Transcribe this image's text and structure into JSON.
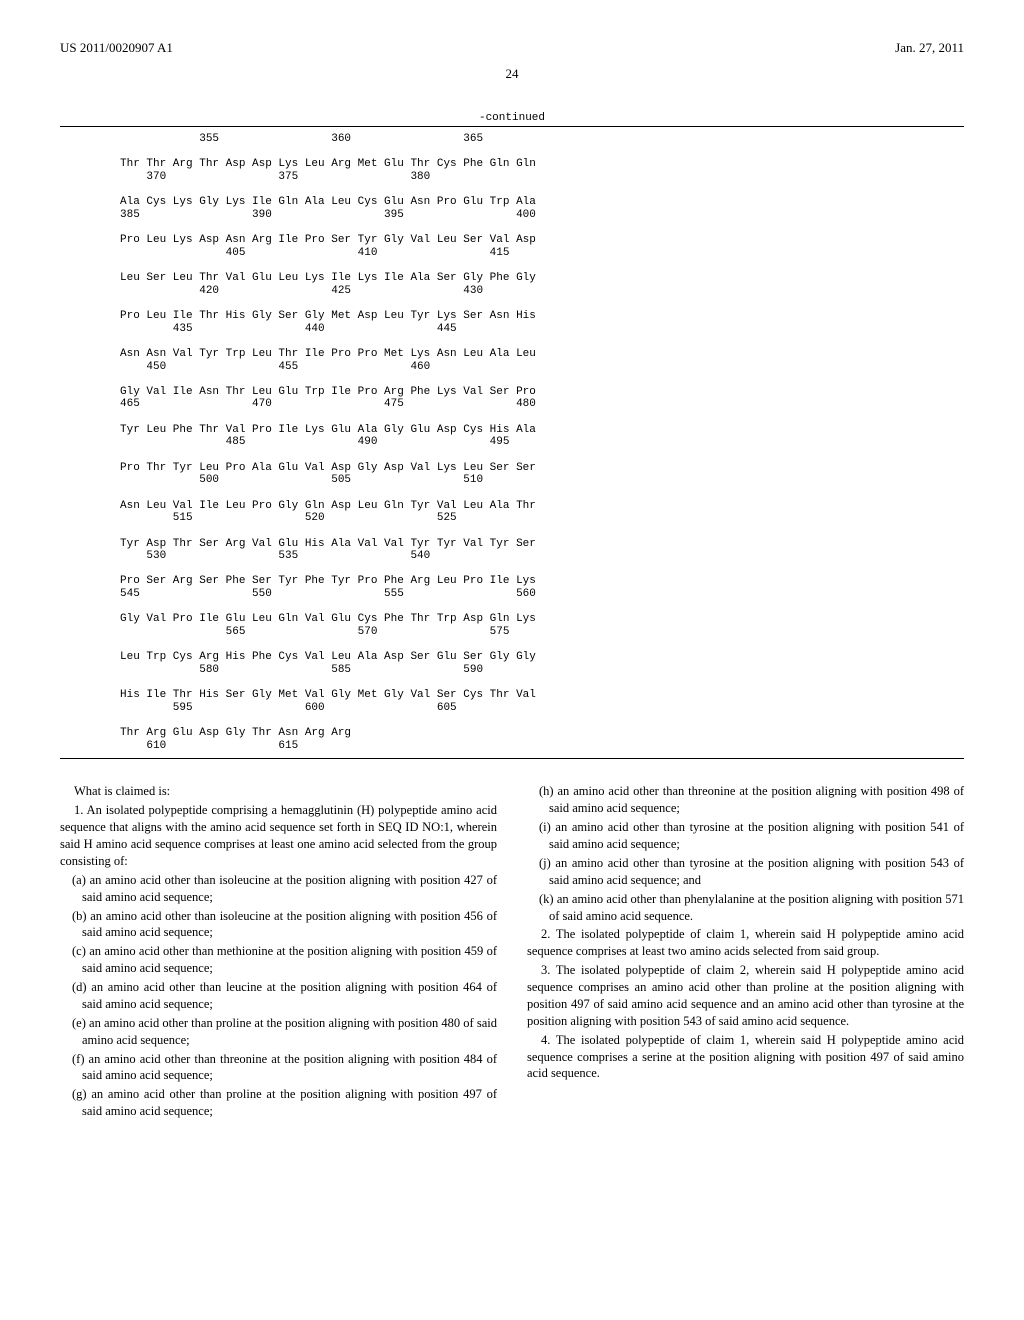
{
  "header": {
    "pub_number": "US 2011/0020907 A1",
    "pub_date": "Jan. 27, 2011"
  },
  "page_number": "24",
  "continued_label": "-continued",
  "sequence": "            355                 360                 365\n\nThr Thr Arg Thr Asp Asp Lys Leu Arg Met Glu Thr Cys Phe Gln Gln\n    370                 375                 380\n\nAla Cys Lys Gly Lys Ile Gln Ala Leu Cys Glu Asn Pro Glu Trp Ala\n385                 390                 395                 400\n\nPro Leu Lys Asp Asn Arg Ile Pro Ser Tyr Gly Val Leu Ser Val Asp\n                405                 410                 415\n\nLeu Ser Leu Thr Val Glu Leu Lys Ile Lys Ile Ala Ser Gly Phe Gly\n            420                 425                 430\n\nPro Leu Ile Thr His Gly Ser Gly Met Asp Leu Tyr Lys Ser Asn His\n        435                 440                 445\n\nAsn Asn Val Tyr Trp Leu Thr Ile Pro Pro Met Lys Asn Leu Ala Leu\n    450                 455                 460\n\nGly Val Ile Asn Thr Leu Glu Trp Ile Pro Arg Phe Lys Val Ser Pro\n465                 470                 475                 480\n\nTyr Leu Phe Thr Val Pro Ile Lys Glu Ala Gly Glu Asp Cys His Ala\n                485                 490                 495\n\nPro Thr Tyr Leu Pro Ala Glu Val Asp Gly Asp Val Lys Leu Ser Ser\n            500                 505                 510\n\nAsn Leu Val Ile Leu Pro Gly Gln Asp Leu Gln Tyr Val Leu Ala Thr\n        515                 520                 525\n\nTyr Asp Thr Ser Arg Val Glu His Ala Val Val Tyr Tyr Val Tyr Ser\n    530                 535                 540\n\nPro Ser Arg Ser Phe Ser Tyr Phe Tyr Pro Phe Arg Leu Pro Ile Lys\n545                 550                 555                 560\n\nGly Val Pro Ile Glu Leu Gln Val Glu Cys Phe Thr Trp Asp Gln Lys\n                565                 570                 575\n\nLeu Trp Cys Arg His Phe Cys Val Leu Ala Asp Ser Glu Ser Gly Gly\n            580                 585                 590\n\nHis Ile Thr His Ser Gly Met Val Gly Met Gly Val Ser Cys Thr Val\n        595                 600                 605\n\nThr Arg Glu Asp Gly Thr Asn Arg Arg\n    610                 615",
  "left_column": {
    "claimed": "What is claimed is:",
    "claim1": "1. An isolated polypeptide comprising a hemagglutinin (H) polypeptide amino acid sequence that aligns with the amino acid sequence set forth in SEQ ID NO:1, wherein said H amino acid sequence comprises at least one amino acid selected from the group consisting of:",
    "a": "(a) an amino acid other than isoleucine at the position aligning with position 427 of said amino acid sequence;",
    "b": "(b) an amino acid other than isoleucine at the position aligning with position 456 of said amino acid sequence;",
    "c": "(c) an amino acid other than methionine at the position aligning with position 459 of said amino acid sequence;",
    "d": "(d) an amino acid other than leucine at the position aligning with position 464 of said amino acid sequence;",
    "e": "(e) an amino acid other than proline at the position aligning with position 480 of said amino acid sequence;",
    "f": "(f) an amino acid other than threonine at the position aligning with position 484 of said amino acid sequence;",
    "g": "(g) an amino acid other than proline at the position aligning with position 497 of said amino acid sequence;"
  },
  "right_column": {
    "h": "(h) an amino acid other than threonine at the position aligning with position 498 of said amino acid sequence;",
    "i": "(i) an amino acid other than tyrosine at the position aligning with position 541 of said amino acid sequence;",
    "j": "(j) an amino acid other than tyrosine at the position aligning with position 543 of said amino acid sequence; and",
    "k": "(k) an amino acid other than phenylalanine at the position aligning with position 571 of said amino acid sequence.",
    "claim2": "2. The isolated polypeptide of claim 1, wherein said H polypeptide amino acid sequence comprises at least two amino acids selected from said group.",
    "claim3": "3. The isolated polypeptide of claim 2, wherein said H polypeptide amino acid sequence comprises an amino acid other than proline at the position aligning with position 497 of said amino acid sequence and an amino acid other than tyrosine at the position aligning with position 543 of said amino acid sequence.",
    "claim4": "4. The isolated polypeptide of claim 1, wherein said H polypeptide amino acid sequence comprises a serine at the position aligning with position 497 of said amino acid sequence."
  }
}
